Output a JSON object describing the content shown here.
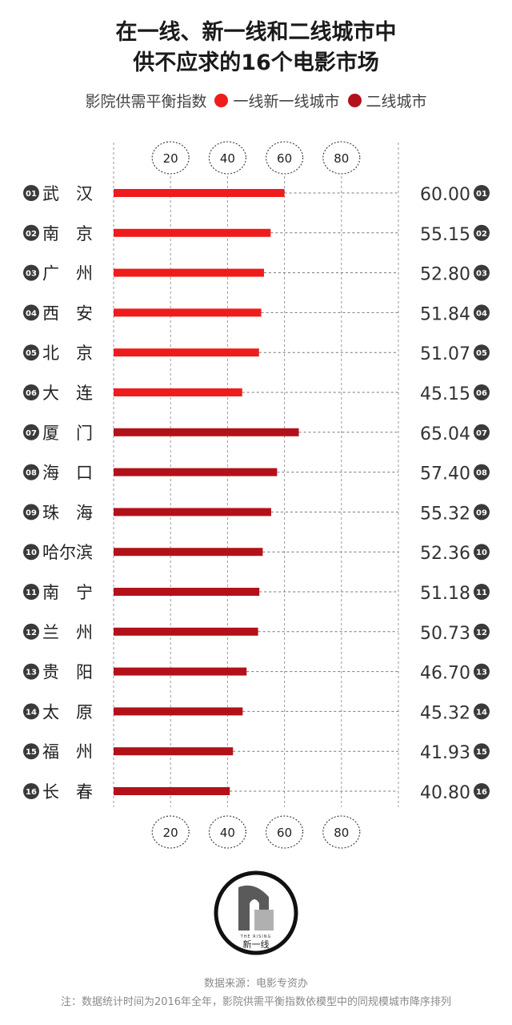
{
  "title_line1": "在一线、新一线和二线城市中",
  "title_line2": "供不应求的16个电影市场",
  "legend": {
    "label": "影院供需平衡指数",
    "series1": "一线新一线城市",
    "series2": "二线城市"
  },
  "colors": {
    "series1": "#ef1c1c",
    "series2": "#b3111a",
    "badge": "#3a3a3a",
    "grid": "#999999"
  },
  "logo": {
    "small_text": "THE RISING",
    "name": "新一线"
  },
  "footer": {
    "source": "数据来源：电影专资办",
    "note": "注：数据统计时间为2016年全年，影院供需平衡指数依模型中的同规模城市降序排列"
  },
  "chart_data": {
    "type": "bar",
    "orientation": "horizontal",
    "xticks": [
      "20",
      "40",
      "60",
      "80"
    ],
    "xlim": [
      0,
      100
    ],
    "grid": true,
    "legend_position": "top",
    "categories": [
      {
        "rank": "01",
        "city": "武　汉",
        "value": 60.0,
        "label": "60.00",
        "group": 1
      },
      {
        "rank": "02",
        "city": "南　京",
        "value": 55.15,
        "label": "55.15",
        "group": 1
      },
      {
        "rank": "03",
        "city": "广　州",
        "value": 52.8,
        "label": "52.80",
        "group": 1
      },
      {
        "rank": "04",
        "city": "西　安",
        "value": 51.84,
        "label": "51.84",
        "group": 1
      },
      {
        "rank": "05",
        "city": "北　京",
        "value": 51.07,
        "label": "51.07",
        "group": 1
      },
      {
        "rank": "06",
        "city": "大　连",
        "value": 45.15,
        "label": "45.15",
        "group": 1
      },
      {
        "rank": "07",
        "city": "厦　门",
        "value": 65.04,
        "label": "65.04",
        "group": 2
      },
      {
        "rank": "08",
        "city": "海　口",
        "value": 57.4,
        "label": "57.40",
        "group": 2
      },
      {
        "rank": "09",
        "city": "珠　海",
        "value": 55.32,
        "label": "55.32",
        "group": 2
      },
      {
        "rank": "10",
        "city": "哈尔滨",
        "value": 52.36,
        "label": "52.36",
        "group": 2
      },
      {
        "rank": "11",
        "city": "南　宁",
        "value": 51.18,
        "label": "51.18",
        "group": 2
      },
      {
        "rank": "12",
        "city": "兰　州",
        "value": 50.73,
        "label": "50.73",
        "group": 2
      },
      {
        "rank": "13",
        "city": "贵　阳",
        "value": 46.7,
        "label": "46.70",
        "group": 2
      },
      {
        "rank": "14",
        "city": "太　原",
        "value": 45.32,
        "label": "45.32",
        "group": 2
      },
      {
        "rank": "15",
        "city": "福　州",
        "value": 41.93,
        "label": "41.93",
        "group": 2
      },
      {
        "rank": "16",
        "city": "长　春",
        "value": 40.8,
        "label": "40.80",
        "group": 2
      }
    ]
  }
}
